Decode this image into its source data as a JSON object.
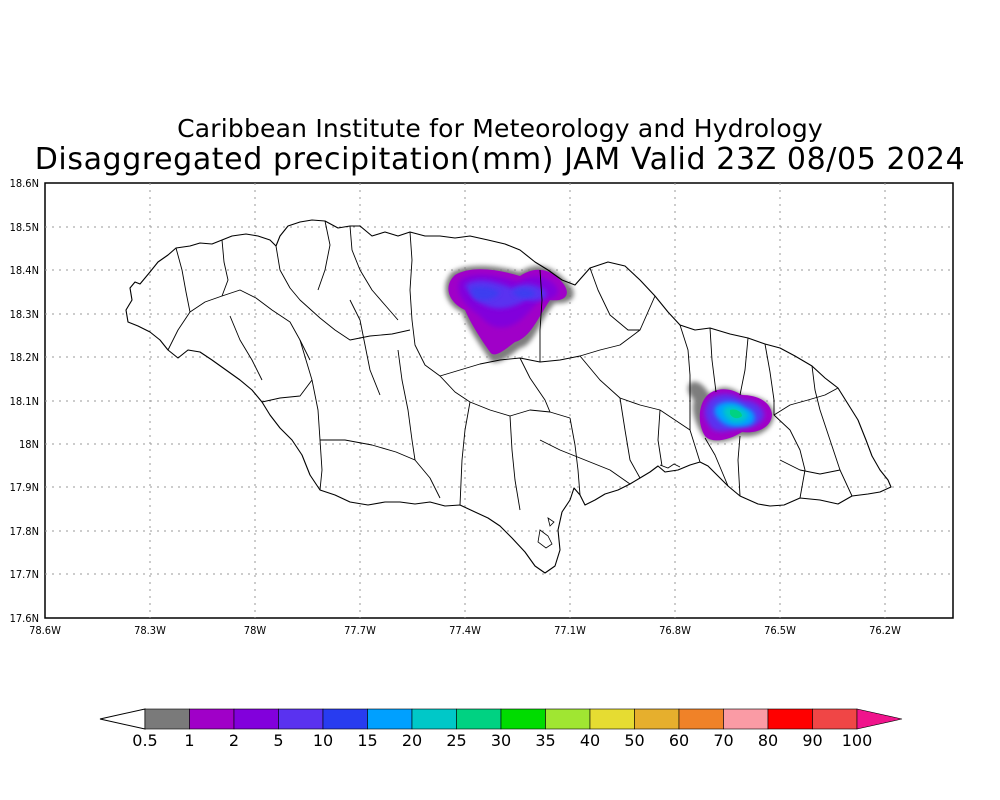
{
  "title": {
    "line1": "Caribbean Institute for Meteorology and Hydrology",
    "line2": "Disaggregated precipitation(mm) JAM Valid 23Z 08/05 2024"
  },
  "map": {
    "lon_ticks": [
      "78.6W",
      "78.3W",
      "78W",
      "77.7W",
      "77.4W",
      "77.1W",
      "76.8W",
      "76.5W",
      "76.2W"
    ],
    "lat_ticks": [
      "18.6N",
      "18.5N",
      "18.4N",
      "18.3N",
      "18.2N",
      "18.1N",
      "18N",
      "17.9N",
      "17.8N",
      "17.7N",
      "17.6N"
    ],
    "lon_range": [
      -78.6,
      -76.0
    ],
    "lat_range": [
      17.6,
      18.6
    ],
    "grid": "dotted",
    "precip_cells": [
      {
        "name": "north-central-cell",
        "lon": -77.3,
        "lat": 18.35,
        "max_class": "5-10 mm"
      },
      {
        "name": "eastern-cell",
        "lon": -76.6,
        "lat": 18.06,
        "max_class": "20-25 mm"
      }
    ]
  },
  "legend": {
    "thresholds": [
      "0.5",
      "1",
      "2",
      "5",
      "10",
      "15",
      "20",
      "25",
      "30",
      "35",
      "40",
      "50",
      "60",
      "70",
      "80",
      "90",
      "100"
    ],
    "colors": [
      "#7a7a7a",
      "#a000c8",
      "#8200dc",
      "#5a32f0",
      "#283cf0",
      "#00a0ff",
      "#00c8c8",
      "#00d282",
      "#00dc00",
      "#a0e632",
      "#e6dc32",
      "#e6af2d",
      "#f08228",
      "#fa9ba5",
      "#ff0000",
      "#f04646"
    ],
    "under_color": "#ffffff",
    "over_color": "#f0148c"
  }
}
